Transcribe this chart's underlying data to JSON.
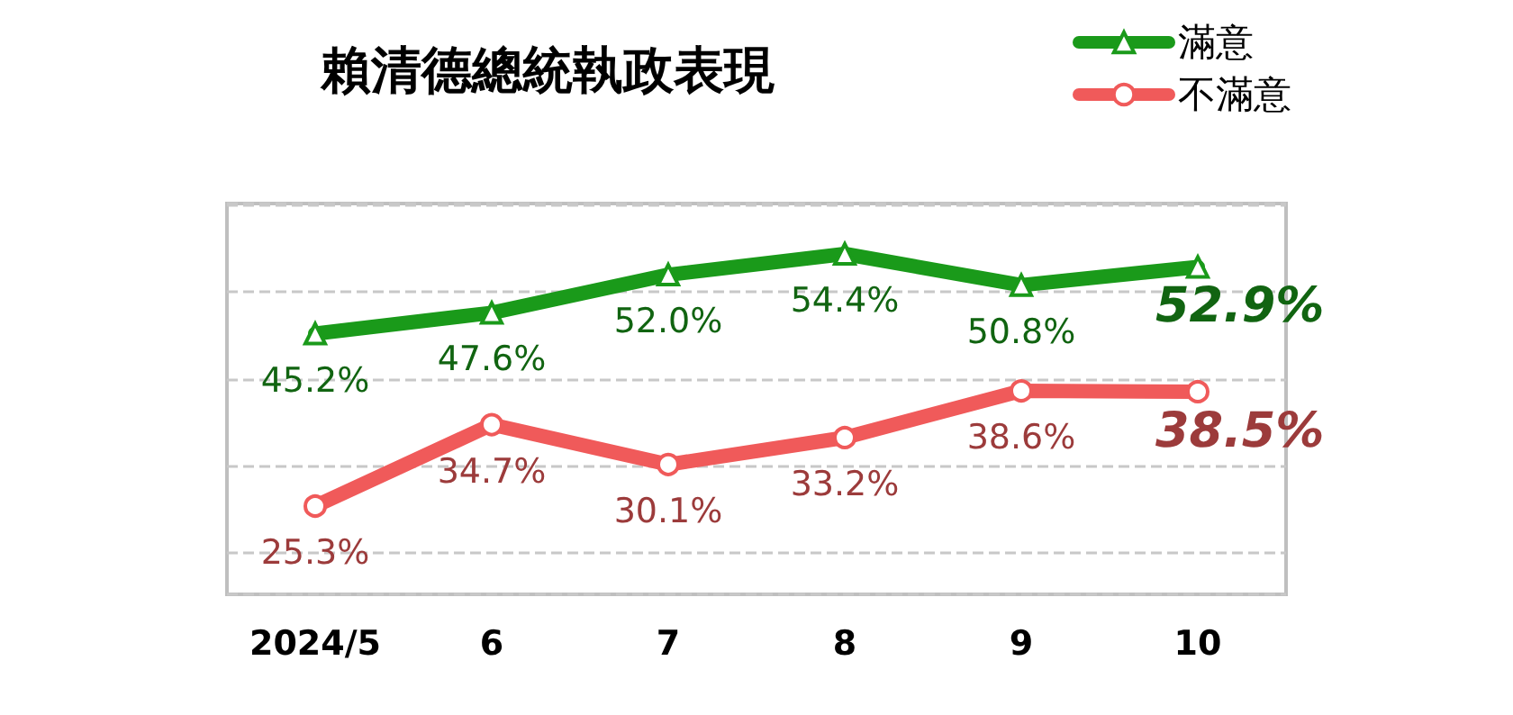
{
  "chart_data": {
    "type": "line",
    "title": "賴清德總統執政表現",
    "categories": [
      "2024/5",
      "6",
      "7",
      "8",
      "9",
      "10"
    ],
    "series": [
      {
        "name": "滿意",
        "color": "#1a9a1a",
        "marker": "triangle",
        "values": [
          45.2,
          47.6,
          52.0,
          54.4,
          50.8,
          52.9
        ],
        "value_labels": [
          "45.2%",
          "47.6%",
          "52.0%",
          "54.4%",
          "50.8%",
          "52.9%"
        ]
      },
      {
        "name": "不滿意",
        "color": "#f05a5a",
        "marker": "circle",
        "values": [
          25.3,
          34.7,
          30.1,
          33.2,
          38.6,
          38.5
        ],
        "value_labels": [
          "25.3%",
          "34.7%",
          "30.1%",
          "33.2%",
          "38.6%",
          "38.5%"
        ]
      }
    ],
    "grid": "y",
    "tick_labels": "x",
    "legend": "top right",
    "line_style": "solid"
  }
}
